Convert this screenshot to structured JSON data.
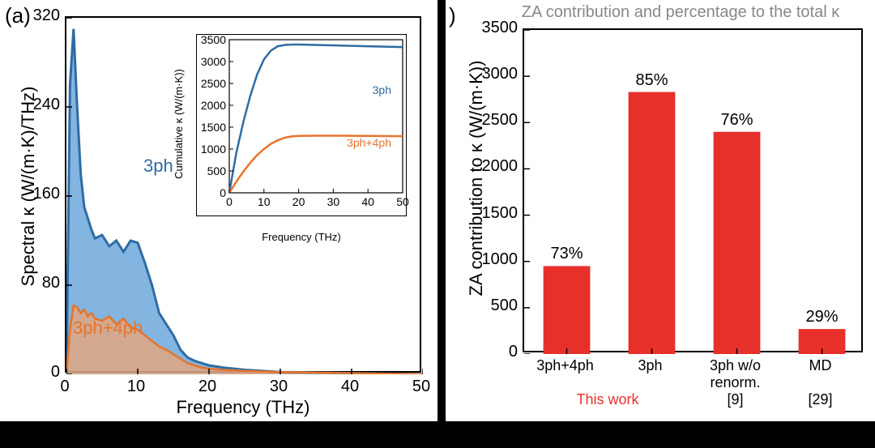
{
  "panel_a": {
    "letter": "(a)",
    "main": {
      "xlabel": "Frequency (THz)",
      "ylabel": "Spectral κ (W/(m·K)/THz)",
      "xlim": [
        0,
        50
      ],
      "ylim": [
        0,
        320
      ],
      "xticks": [
        0,
        10,
        20,
        30,
        40,
        50
      ],
      "yticks": [
        0,
        80,
        160,
        240,
        320
      ],
      "series": {
        "threeph": {
          "label": "3ph",
          "fill_color": "#5b9bd5",
          "fill_opacity": 0.75,
          "line_color": "#2e6ca4",
          "line_width": 3,
          "x": [
            0,
            0.5,
            1,
            1.5,
            2,
            2.5,
            3,
            3.5,
            4,
            5,
            6,
            7,
            8,
            9,
            10,
            11,
            12,
            13,
            14,
            15,
            16,
            17,
            18,
            19,
            20,
            22,
            25,
            30,
            40,
            50
          ],
          "y": [
            0,
            260,
            310,
            240,
            180,
            150,
            140,
            130,
            122,
            125,
            115,
            120,
            110,
            120,
            118,
            100,
            80,
            55,
            45,
            35,
            22,
            15,
            12,
            10,
            8,
            6,
            4,
            2,
            1,
            0
          ]
        },
        "threeplusfour": {
          "label": "3ph+4ph",
          "label_color": "#e8742c",
          "fill_color": "#f4a26b",
          "fill_opacity": 0.7,
          "line_color": "#e8742c",
          "line_width": 2.5,
          "x": [
            0,
            0.5,
            1,
            1.5,
            2,
            2.5,
            3,
            3.5,
            4,
            5,
            6,
            7,
            8,
            9,
            10,
            11,
            12,
            13,
            14,
            15,
            16,
            17,
            18,
            19,
            20,
            22,
            25,
            30,
            40,
            50
          ],
          "y": [
            0,
            40,
            62,
            60,
            55,
            58,
            52,
            55,
            50,
            48,
            52,
            45,
            50,
            42,
            40,
            35,
            30,
            25,
            22,
            18,
            14,
            10,
            8,
            6,
            5,
            4,
            3,
            2,
            1,
            0
          ]
        }
      }
    },
    "inset": {
      "xlabel": "Frequency (THz)",
      "ylabel": "Cumulative κ (W/(m·K))",
      "xlim": [
        0,
        50
      ],
      "ylim": [
        0,
        3500
      ],
      "xticks": [
        0,
        10,
        20,
        30,
        40,
        50
      ],
      "yticks": [
        0,
        500,
        1000,
        1500,
        2000,
        2500,
        3000,
        3500
      ],
      "series": {
        "threeph": {
          "label": "3ph",
          "color": "#2e6ca4",
          "line_width": 2.5,
          "x": [
            0,
            2,
            4,
            6,
            8,
            10,
            12,
            14,
            16,
            18,
            20,
            25,
            30,
            40,
            50
          ],
          "y": [
            0,
            900,
            1600,
            2200,
            2700,
            3050,
            3250,
            3350,
            3380,
            3390,
            3390,
            3380,
            3370,
            3350,
            3330
          ]
        },
        "threeplusfour": {
          "label": "3ph+4ph",
          "color": "#e8742c",
          "line_width": 2.5,
          "x": [
            0,
            2,
            4,
            6,
            8,
            10,
            12,
            14,
            16,
            18,
            20,
            25,
            30,
            40,
            50
          ],
          "y": [
            0,
            250,
            480,
            680,
            860,
            1000,
            1120,
            1200,
            1260,
            1290,
            1300,
            1305,
            1305,
            1300,
            1295
          ]
        }
      }
    }
  },
  "panel_b": {
    "letter": ")",
    "title": "ZA contribution and percentage to the total κ",
    "xlabel_cats": [
      "3ph+4ph",
      "3ph",
      "3ph w/o\nrenorm.",
      "MD"
    ],
    "refs": [
      "This work",
      "",
      "[9]",
      "[29]"
    ],
    "ref_colors": [
      "#e8302a",
      "",
      "#000",
      "#000"
    ],
    "ylabel": "ZA contribution to κ (W/(m·K))",
    "ylim": [
      0,
      3500
    ],
    "yticks": [
      0,
      500,
      1000,
      1500,
      2000,
      2500,
      3000,
      3500
    ],
    "bars": {
      "values": [
        950,
        2830,
        2400,
        270
      ],
      "pct_labels": [
        "73%",
        "85%",
        "76%",
        "29%"
      ],
      "color": "#e8302a",
      "bar_width": 0.55
    }
  },
  "colors": {
    "axis": "#000000",
    "bg": "#ffffff"
  },
  "fonts": {
    "axis_label_pt": 22,
    "tick_pt": 20,
    "inset_axis_label_pt": 13,
    "inset_tick_pt": 12
  }
}
